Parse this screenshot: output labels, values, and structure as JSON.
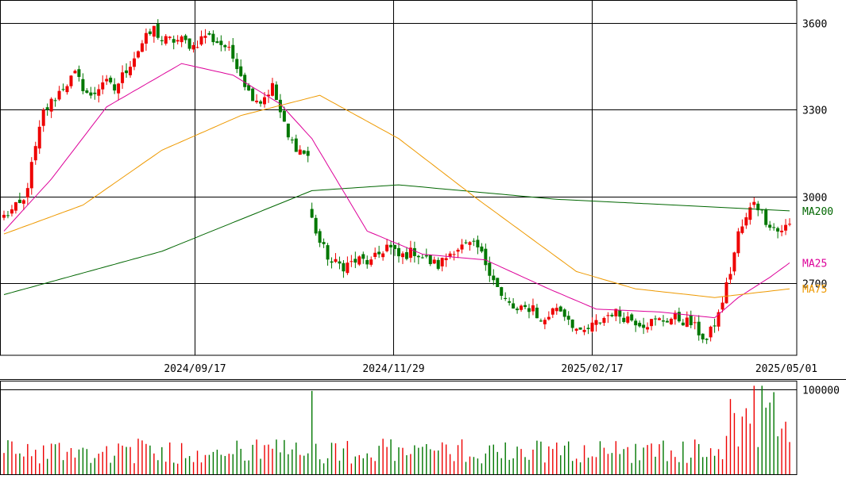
{
  "chart_data": [
    {
      "type": "candlestick",
      "x_ticks": [
        "2024/09/17",
        "2024/11/29",
        "2025/02/17",
        "2025/05/01"
      ],
      "y_ticks": [
        2700,
        3000,
        3300,
        3600
      ],
      "ylim": [
        2450,
        3680
      ],
      "grid": true,
      "colors": {
        "up": "#ee0000",
        "down": "#007700",
        "ma25": "#dd0099",
        "ma75": "#ee9900",
        "ma200": "#006600"
      },
      "gap_after_index": 77,
      "anchors": [
        [
          0,
          2930
        ],
        [
          5,
          2980
        ],
        [
          10,
          3290
        ],
        [
          15,
          3380
        ],
        [
          18,
          3420
        ],
        [
          22,
          3340
        ],
        [
          25,
          3400
        ],
        [
          28,
          3370
        ],
        [
          31,
          3440
        ],
        [
          35,
          3530
        ],
        [
          38,
          3580
        ],
        [
          40,
          3540
        ],
        [
          45,
          3540
        ],
        [
          48,
          3520
        ],
        [
          51,
          3560
        ],
        [
          56,
          3520
        ],
        [
          59,
          3460
        ],
        [
          62,
          3360
        ],
        [
          65,
          3330
        ],
        [
          68,
          3380
        ],
        [
          72,
          3200
        ],
        [
          75,
          3160
        ],
        [
          77,
          3140
        ],
        [
          78,
          2920
        ],
        [
          80,
          2840
        ],
        [
          83,
          2770
        ],
        [
          86,
          2760
        ],
        [
          90,
          2780
        ],
        [
          93,
          2770
        ],
        [
          97,
          2830
        ],
        [
          100,
          2790
        ],
        [
          104,
          2810
        ],
        [
          107,
          2780
        ],
        [
          110,
          2760
        ],
        [
          114,
          2820
        ],
        [
          118,
          2830
        ],
        [
          120,
          2820
        ],
        [
          124,
          2720
        ],
        [
          126,
          2650
        ],
        [
          130,
          2600
        ],
        [
          134,
          2620
        ],
        [
          136,
          2560
        ],
        [
          140,
          2620
        ],
        [
          143,
          2580
        ],
        [
          146,
          2520
        ],
        [
          150,
          2560
        ],
        [
          154,
          2600
        ],
        [
          158,
          2580
        ],
        [
          162,
          2560
        ],
        [
          166,
          2570
        ],
        [
          170,
          2580
        ],
        [
          174,
          2560
        ],
        [
          178,
          2500
        ],
        [
          181,
          2590
        ],
        [
          184,
          2740
        ],
        [
          186,
          2870
        ],
        [
          188,
          2920
        ],
        [
          190,
          2990
        ],
        [
          193,
          2920
        ],
        [
          196,
          2880
        ],
        [
          199,
          2900
        ]
      ],
      "series": [
        {
          "name": "MA200",
          "values": [
            [
              0,
              2660
            ],
            [
              40,
              2810
            ],
            [
              78,
              3020
            ],
            [
              100,
              3040
            ],
            [
              140,
              2990
            ],
            [
              170,
              2970
            ],
            [
              199,
              2950
            ]
          ]
        },
        {
          "name": "MA25",
          "values": [
            [
              0,
              2880
            ],
            [
              12,
              3060
            ],
            [
              26,
              3310
            ],
            [
              45,
              3460
            ],
            [
              58,
              3420
            ],
            [
              70,
              3320
            ],
            [
              78,
              3200
            ],
            [
              92,
              2880
            ],
            [
              106,
              2800
            ],
            [
              122,
              2780
            ],
            [
              138,
              2680
            ],
            [
              150,
              2610
            ],
            [
              166,
              2600
            ],
            [
              180,
              2580
            ],
            [
              186,
              2650
            ],
            [
              194,
              2720
            ],
            [
              199,
              2770
            ]
          ]
        },
        {
          "name": "MA75",
          "values": [
            [
              0,
              2870
            ],
            [
              20,
              2970
            ],
            [
              40,
              3160
            ],
            [
              60,
              3280
            ],
            [
              80,
              3350
            ],
            [
              100,
              3200
            ],
            [
              120,
              2990
            ],
            [
              145,
              2740
            ],
            [
              160,
              2680
            ],
            [
              180,
              2650
            ],
            [
              199,
              2680
            ]
          ]
        }
      ]
    },
    {
      "type": "bar",
      "y_ticks": [
        100000
      ],
      "ylim": [
        0,
        110000
      ],
      "gap_after_index": 77
    }
  ]
}
